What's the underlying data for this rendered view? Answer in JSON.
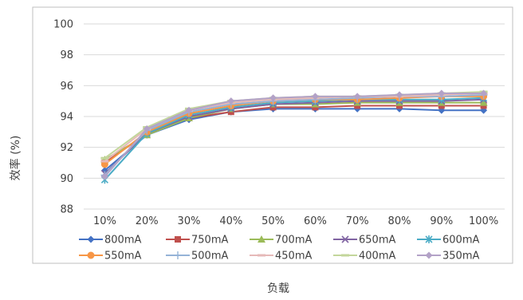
{
  "chart_data": {
    "type": "line",
    "ylabel": "效率 (%)",
    "xlabel": "负载",
    "categories": [
      "10%",
      "20%",
      "30%",
      "40%",
      "50%",
      "60%",
      "70%",
      "80%",
      "90%",
      "100%"
    ],
    "ylim": [
      88,
      100
    ],
    "yticks": [
      88,
      90,
      92,
      94,
      96,
      98,
      100
    ],
    "ytick_labels": [
      "88",
      "90",
      "92",
      "94",
      "96",
      "98",
      "100"
    ],
    "grid": true,
    "legend": "bottom",
    "series": [
      {
        "name": "800mA",
        "color": "#4472c4",
        "marker": "diamond",
        "values": [
          90.5,
          92.8,
          93.8,
          94.3,
          94.5,
          94.5,
          94.5,
          94.5,
          94.4,
          94.4
        ]
      },
      {
        "name": "750mA",
        "color": "#c0504d",
        "marker": "square",
        "values": [
          91.0,
          92.9,
          93.9,
          94.3,
          94.6,
          94.6,
          94.7,
          94.7,
          94.7,
          94.7
        ]
      },
      {
        "name": "700mA",
        "color": "#9bbb59",
        "marker": "triangle",
        "values": [
          91.2,
          92.8,
          93.9,
          94.5,
          94.8,
          94.8,
          94.9,
          94.9,
          94.9,
          94.9
        ]
      },
      {
        "name": "650mA",
        "color": "#8064a2",
        "marker": "x",
        "values": [
          90.3,
          92.9,
          94.0,
          94.5,
          94.8,
          94.9,
          95.0,
          95.0,
          95.0,
          95.1
        ]
      },
      {
        "name": "600mA",
        "color": "#4bacc6",
        "marker": "star",
        "values": [
          89.9,
          92.9,
          94.1,
          94.6,
          94.9,
          95.0,
          95.1,
          95.1,
          95.1,
          95.2
        ]
      },
      {
        "name": "550mA",
        "color": "#f79646",
        "marker": "circle",
        "values": [
          90.9,
          93.0,
          94.2,
          94.7,
          95.0,
          95.1,
          95.1,
          95.2,
          95.3,
          95.3
        ]
      },
      {
        "name": "500mA",
        "color": "#95b3d7",
        "marker": "plus",
        "values": [
          90.2,
          93.1,
          94.3,
          94.8,
          95.0,
          95.1,
          95.2,
          95.3,
          95.3,
          95.4
        ]
      },
      {
        "name": "450mA",
        "color": "#e6b9b8",
        "marker": "dash",
        "values": [
          91.1,
          93.2,
          94.4,
          94.9,
          95.1,
          95.2,
          95.3,
          95.3,
          95.4,
          95.5
        ]
      },
      {
        "name": "400mA",
        "color": "#c3d69b",
        "marker": "dash",
        "values": [
          91.3,
          93.3,
          94.5,
          95.0,
          95.2,
          95.3,
          95.3,
          95.4,
          95.5,
          95.6
        ]
      },
      {
        "name": "350mA",
        "color": "#b3a2c7",
        "marker": "diamond",
        "values": [
          90.1,
          93.2,
          94.4,
          95.0,
          95.2,
          95.3,
          95.3,
          95.4,
          95.5,
          95.5
        ]
      }
    ]
  }
}
